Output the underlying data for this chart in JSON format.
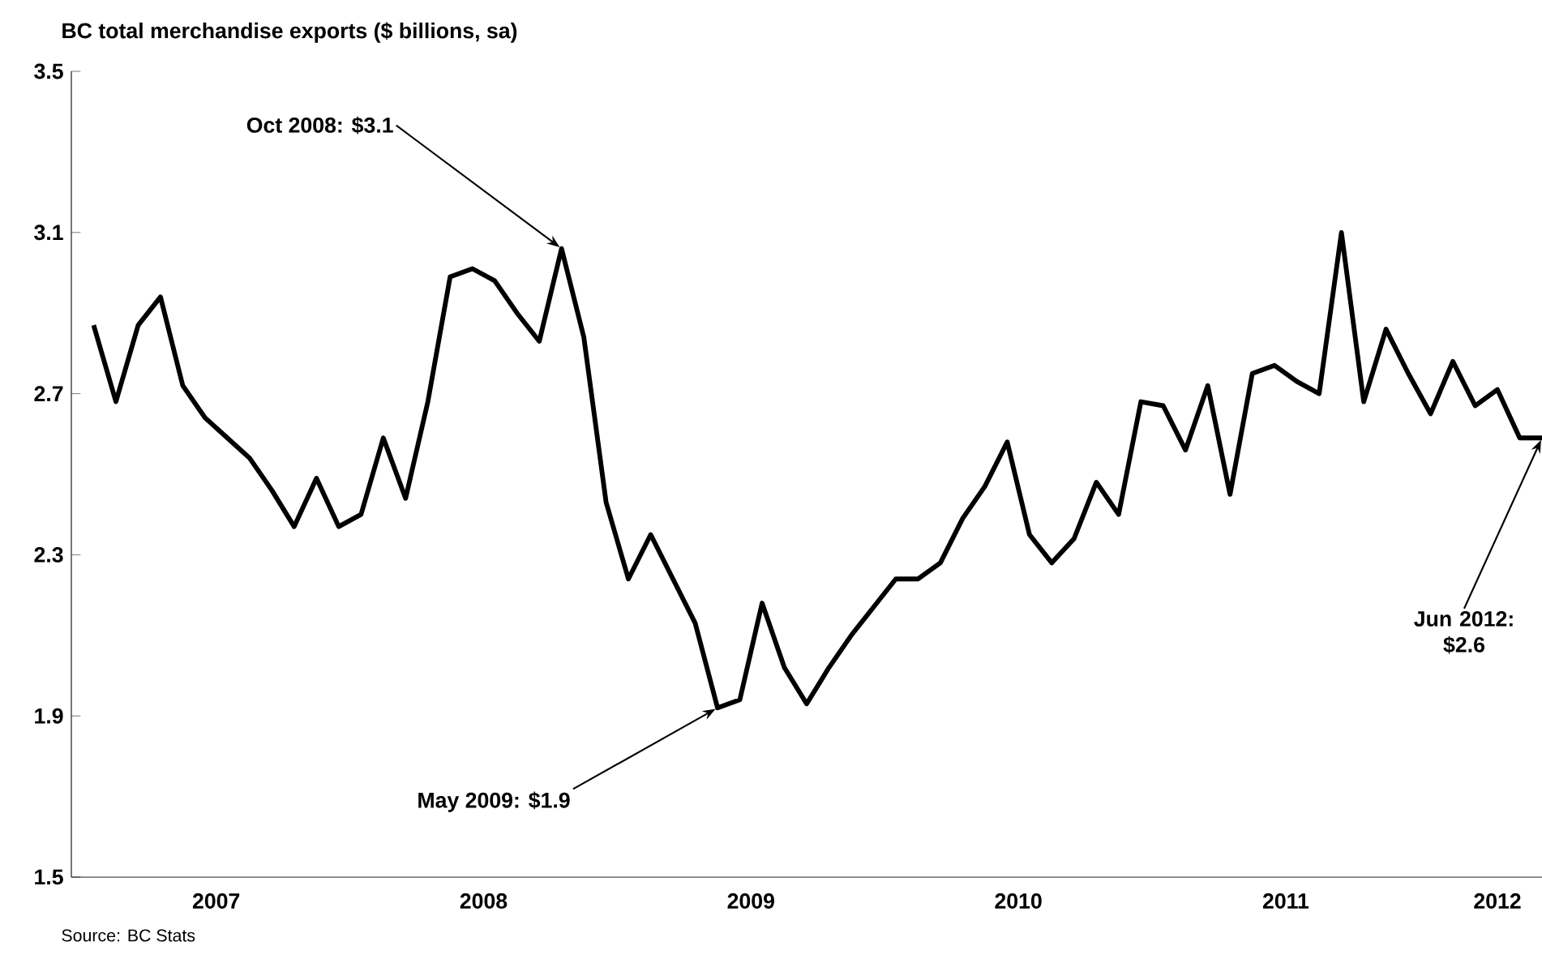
{
  "chart_data": {
    "type": "line",
    "title": "BC total merchandise exports ($ billions, sa)",
    "x": [
      "2007-01",
      "2007-02",
      "2007-03",
      "2007-04",
      "2007-05",
      "2007-06",
      "2007-07",
      "2007-08",
      "2007-09",
      "2007-10",
      "2007-11",
      "2007-12",
      "2008-01",
      "2008-02",
      "2008-03",
      "2008-04",
      "2008-05",
      "2008-06",
      "2008-07",
      "2008-08",
      "2008-09",
      "2008-10",
      "2008-11",
      "2008-12",
      "2009-01",
      "2009-02",
      "2009-03",
      "2009-04",
      "2009-05",
      "2009-06",
      "2009-07",
      "2009-08",
      "2009-09",
      "2009-10",
      "2009-11",
      "2009-12",
      "2010-01",
      "2010-02",
      "2010-03",
      "2010-04",
      "2010-05",
      "2010-06",
      "2010-07",
      "2010-08",
      "2010-09",
      "2010-10",
      "2010-11",
      "2010-12",
      "2011-01",
      "2011-02",
      "2011-03",
      "2011-04",
      "2011-05",
      "2011-06",
      "2011-07",
      "2011-08",
      "2011-09",
      "2011-10",
      "2011-11",
      "2011-12",
      "2012-01",
      "2012-02",
      "2012-03",
      "2012-04",
      "2012-05",
      "2012-06"
    ],
    "series": [
      {
        "color": "#000000",
        "values": [
          2.87,
          2.68,
          2.87,
          2.94,
          2.72,
          2.64,
          2.59,
          2.54,
          2.46,
          2.37,
          2.49,
          2.37,
          2.4,
          2.59,
          2.44,
          2.68,
          2.99,
          3.01,
          2.98,
          2.9,
          2.83,
          3.06,
          2.84,
          2.43,
          2.24,
          2.35,
          2.24,
          2.13,
          1.92,
          1.94,
          2.18,
          2.02,
          1.93,
          2.02,
          2.1,
          2.17,
          2.24,
          2.24,
          2.28,
          2.39,
          2.47,
          2.58,
          2.35,
          2.28,
          2.34,
          2.48,
          2.4,
          2.68,
          2.67,
          2.56,
          2.72,
          2.45,
          2.75,
          2.77,
          2.73,
          2.7,
          3.1,
          2.68,
          2.86,
          2.75,
          2.65,
          2.78,
          2.67,
          2.71,
          2.59,
          2.59
        ]
      }
    ],
    "xlim": [
      "2006-12",
      "2012-06"
    ],
    "xticks": [
      {
        "value": "2007-06-16",
        "label": "2007"
      },
      {
        "value": "2008-06-16",
        "label": "2008"
      },
      {
        "value": "2009-06-16",
        "label": "2009"
      },
      {
        "value": "2010-06-16",
        "label": "2010"
      },
      {
        "value": "2011-06-16",
        "label": "2011"
      },
      {
        "value": "2012-04-01",
        "label": "2012"
      }
    ],
    "ylim": [
      1.5,
      3.5
    ],
    "yticks": [
      {
        "value": 1.5,
        "label": "1.5"
      },
      {
        "value": 1.9,
        "label": "1.9"
      },
      {
        "value": 2.3,
        "label": "2.3"
      },
      {
        "value": 2.7,
        "label": "2.7"
      },
      {
        "value": 3.1,
        "label": "3.1"
      },
      {
        "value": 3.5,
        "label": "3.5"
      }
    ],
    "grid": false,
    "marker": "none",
    "line_style": "solid",
    "annotations": [
      {
        "text": "Oct 2008: $3.1",
        "x": "2008-10",
        "y": 3.06
      },
      {
        "text": "May 2009: $1.9",
        "x": "2009-05",
        "y": 1.92
      },
      {
        "text": "Jun 2012: $2.6",
        "x": "2012-06",
        "y": 2.59
      },
      "Source: BC Stats"
    ]
  }
}
